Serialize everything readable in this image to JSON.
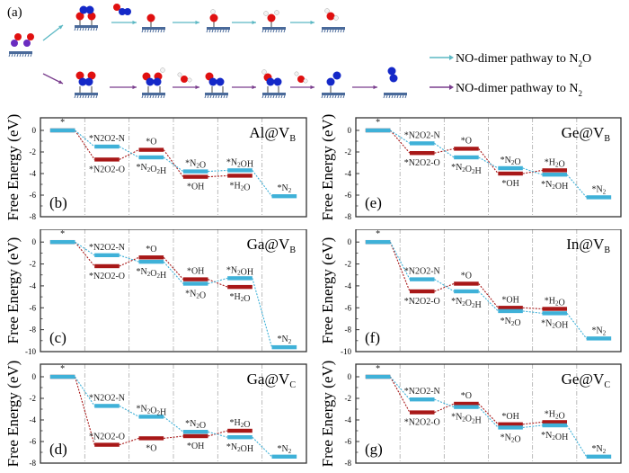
{
  "scheme": {
    "label": "(a)",
    "legend": [
      {
        "text": "NO-dimer pathway to N",
        "sub": "2",
        "suffix": "O",
        "color": "#5bb8c4"
      },
      {
        "text": "NO-dimer pathway to N",
        "sub": "2",
        "suffix": "",
        "color": "#7a3e8e"
      }
    ],
    "atom_colors": {
      "O": "#e01010",
      "N": "#1428c8",
      "N_initial": "#6a2cc0",
      "H": "#f2f2f2",
      "surface": "#4a6a9a"
    }
  },
  "colors": {
    "n2o_path": "#3fb1d8",
    "n2_path": "#a81818"
  },
  "chart_data": [
    {
      "type": "line",
      "panel_label": "(b)",
      "title": "Al@V",
      "title_sub": "B",
      "ylabel": "Free Energy (eV)",
      "ylim": [
        -8,
        1
      ],
      "yticks": [
        0,
        -2,
        -4,
        -6,
        -8
      ],
      "steps": 6,
      "series": [
        {
          "name": "NO-dimer pathway to N2O",
          "color": "n2o",
          "values": [
            0,
            -1.5,
            -2.5,
            -3.8,
            -3.7,
            -6.1
          ],
          "labels": [
            "*",
            "*N2O2-N",
            "*N2O2H",
            "*N2O",
            "*N2OH",
            "*N2"
          ],
          "label_pos": [
            "above",
            "above",
            "below",
            "above",
            "above",
            "above"
          ]
        },
        {
          "name": "NO-dimer pathway to N2",
          "color": "n2",
          "values": [
            0,
            -2.7,
            -1.8,
            -4.3,
            -4.2
          ],
          "labels": [
            "",
            "*N2O2-O",
            "*O",
            "*OH",
            "*H2O"
          ],
          "label_pos": [
            "above",
            "below",
            "above",
            "below",
            "below"
          ]
        }
      ]
    },
    {
      "type": "line",
      "panel_label": "(c)",
      "title": "Ga@V",
      "title_sub": "B",
      "ylabel": "Free Energy (eV)",
      "ylim": [
        -10,
        1
      ],
      "yticks": [
        0,
        -2,
        -4,
        -6,
        -8,
        -10
      ],
      "steps": 6,
      "series": [
        {
          "name": "NO-dimer pathway to N2O",
          "color": "n2o",
          "values": [
            0,
            -1.2,
            -1.8,
            -3.8,
            -3.3,
            -9.6
          ],
          "labels": [
            "*",
            "*N2O2-N",
            "*N2O2H",
            "*N2O",
            "*N2OH",
            "*N2"
          ],
          "label_pos": [
            "above",
            "above",
            "below",
            "below",
            "above",
            "above"
          ]
        },
        {
          "name": "NO-dimer pathway to N2",
          "color": "n2",
          "values": [
            0,
            -2.2,
            -1.4,
            -3.4,
            -4.1
          ],
          "labels": [
            "",
            "*N2O2-O",
            "*O",
            "*OH",
            "*H2O"
          ],
          "label_pos": [
            "above",
            "below",
            "above",
            "above",
            "below"
          ]
        }
      ]
    },
    {
      "type": "line",
      "panel_label": "(d)",
      "title": "Ga@V",
      "title_sub": "C",
      "ylabel": "Free Energy (eV)",
      "ylim": [
        -8,
        1
      ],
      "yticks": [
        0,
        -2,
        -4,
        -6,
        -8
      ],
      "steps": 6,
      "series": [
        {
          "name": "NO-dimer pathway to N2O",
          "color": "n2o",
          "values": [
            0,
            -2.7,
            -3.7,
            -5.1,
            -5.6,
            -7.4
          ],
          "labels": [
            "*",
            "*N2O2-N",
            "*N2O2H",
            "*N2O",
            "*N2OH",
            "*N2"
          ],
          "label_pos": [
            "above",
            "above",
            "above",
            "above",
            "below",
            "above"
          ]
        },
        {
          "name": "NO-dimer pathway to N2",
          "color": "n2",
          "values": [
            0,
            -6.3,
            -5.7,
            -5.5,
            -5.0
          ],
          "labels": [
            "",
            "*N2O2-O",
            "*O",
            "*OH",
            "*H2O"
          ],
          "label_pos": [
            "above",
            "above",
            "below",
            "below",
            "above"
          ]
        }
      ]
    },
    {
      "type": "line",
      "panel_label": "(e)",
      "title": "Ge@V",
      "title_sub": "B",
      "ylabel": "Free Energy (eV)",
      "ylim": [
        -8,
        1
      ],
      "yticks": [
        0,
        -2,
        -4,
        -6,
        -8
      ],
      "steps": 6,
      "series": [
        {
          "name": "NO-dimer pathway to N2O",
          "color": "n2o",
          "values": [
            0,
            -1.2,
            -2.5,
            -3.5,
            -4.1,
            -6.2
          ],
          "labels": [
            "*",
            "*N2O2-N",
            "*N2O2H",
            "*N2O",
            "*N2OH",
            "*N2"
          ],
          "label_pos": [
            "above",
            "above",
            "below",
            "above",
            "below",
            "above"
          ]
        },
        {
          "name": "NO-dimer pathway to N2",
          "color": "n2",
          "values": [
            0,
            -2.1,
            -1.7,
            -4.0,
            -3.7
          ],
          "labels": [
            "",
            "*N2O2-O",
            "*O",
            "*OH",
            "*H2O"
          ],
          "label_pos": [
            "above",
            "below",
            "above",
            "below",
            "above"
          ]
        }
      ]
    },
    {
      "type": "line",
      "panel_label": "(f)",
      "title": "In@V",
      "title_sub": "B",
      "ylabel": "Free Energy (eV)",
      "ylim": [
        -10,
        1
      ],
      "yticks": [
        0,
        -2,
        -4,
        -6,
        -8,
        -10
      ],
      "steps": 6,
      "series": [
        {
          "name": "NO-dimer pathway to N2O",
          "color": "n2o",
          "values": [
            0,
            -3.4,
            -4.5,
            -6.3,
            -6.5,
            -8.8
          ],
          "labels": [
            "*",
            "*N2O2-N",
            "*N2O2H",
            "*N2O",
            "*N2OH",
            "*N2"
          ],
          "label_pos": [
            "above",
            "above",
            "below",
            "below",
            "below",
            "above"
          ]
        },
        {
          "name": "NO-dimer pathway to N2",
          "color": "n2",
          "values": [
            0,
            -4.5,
            -3.8,
            -6.0,
            -6.1
          ],
          "labels": [
            "",
            "*N2O2-O",
            "*O",
            "*OH",
            "*H2O"
          ],
          "label_pos": [
            "above",
            "below",
            "above",
            "above",
            "above"
          ]
        }
      ]
    },
    {
      "type": "line",
      "panel_label": "(g)",
      "title": "Ge@V",
      "title_sub": "C",
      "ylabel": "Free Energy (eV)",
      "ylim": [
        -8,
        1
      ],
      "yticks": [
        0,
        -2,
        -4,
        -6,
        -8
      ],
      "steps": 6,
      "series": [
        {
          "name": "NO-dimer pathway to N2O",
          "color": "n2o",
          "values": [
            0,
            -2.1,
            -2.8,
            -4.7,
            -4.5,
            -7.4
          ],
          "labels": [
            "*",
            "*N2O2-N",
            "*N2O2H",
            "*N2O",
            "*N2OH",
            "*N2"
          ],
          "label_pos": [
            "above",
            "above",
            "below",
            "below",
            "below",
            "above"
          ]
        },
        {
          "name": "NO-dimer pathway to N2",
          "color": "n2",
          "values": [
            0,
            -3.3,
            -2.5,
            -4.4,
            -4.2
          ],
          "labels": [
            "",
            "*N2O2-O",
            "*O",
            "*OH",
            "*H2O"
          ],
          "label_pos": [
            "above",
            "below",
            "above",
            "above",
            "above"
          ]
        }
      ]
    }
  ]
}
